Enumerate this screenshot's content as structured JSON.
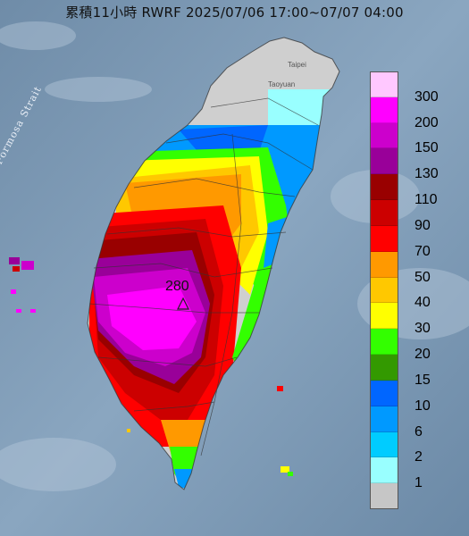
{
  "title": "累積11小時 RWRF 2025/07/06 17:00~07/07 04:00",
  "water_label": "Formosa Strait",
  "peak_value": "280",
  "city_labels": [
    "Taipei",
    "Taoyuan"
  ],
  "legend": [
    {
      "label": "300",
      "color": "#ffc8ff"
    },
    {
      "label": "200",
      "color": "#ff00ff"
    },
    {
      "label": "150",
      "color": "#cc00cc"
    },
    {
      "label": "130",
      "color": "#990099"
    },
    {
      "label": "110",
      "color": "#990000"
    },
    {
      "label": "90",
      "color": "#cc0000"
    },
    {
      "label": "70",
      "color": "#ff0000"
    },
    {
      "label": "50",
      "color": "#ff9900"
    },
    {
      "label": "40",
      "color": "#ffc800"
    },
    {
      "label": "30",
      "color": "#ffff00"
    },
    {
      "label": "20",
      "color": "#33ff00"
    },
    {
      "label": "15",
      "color": "#339900"
    },
    {
      "label": "10",
      "color": "#0066ff"
    },
    {
      "label": "6",
      "color": "#0099ff"
    },
    {
      "label": "2",
      "color": "#00ccff"
    },
    {
      "label": "1",
      "color": "#99ffff"
    },
    {
      "label": "",
      "color": "#c6c6c6"
    }
  ]
}
